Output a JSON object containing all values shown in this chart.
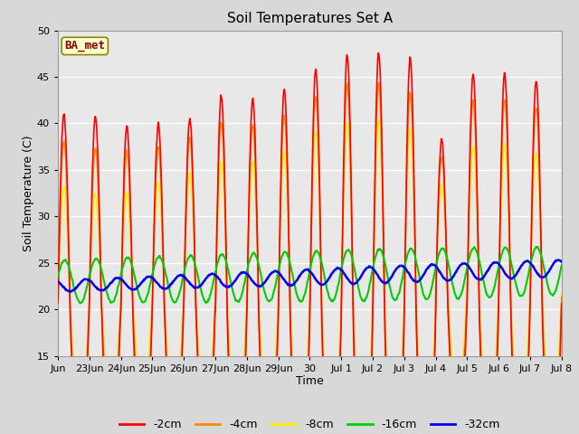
{
  "title": "Soil Temperatures Set A",
  "xlabel": "Time",
  "ylabel": "Soil Temperature (C)",
  "ylim": [
    15,
    50
  ],
  "yticks": [
    15,
    20,
    25,
    30,
    35,
    40,
    45,
    50
  ],
  "fig_bg_color": "#d8d8d8",
  "plot_bg_color": "#e8e8e8",
  "annotation_text": "BA_met",
  "annotation_color": "#8b0000",
  "annotation_bg": "#ffffcc",
  "series_colors": {
    "-2cm": "#ff0000",
    "-4cm": "#ff8800",
    "-8cm": "#ffee00",
    "-16cm": "#00cc00",
    "-32cm": "#0000ee"
  },
  "x_tick_labels": [
    "Jun",
    "23Jun",
    "24Jun",
    "25Jun",
    "26Jun",
    "27Jun",
    "28Jun",
    "29Jun",
    "30",
    "Jul 1",
    "Jul 2",
    "Jul 3",
    "Jul 4",
    "Jul 5",
    "Jul 6",
    "Jul 7",
    "Jul 8"
  ],
  "num_days": 16,
  "points_per_day": 48
}
